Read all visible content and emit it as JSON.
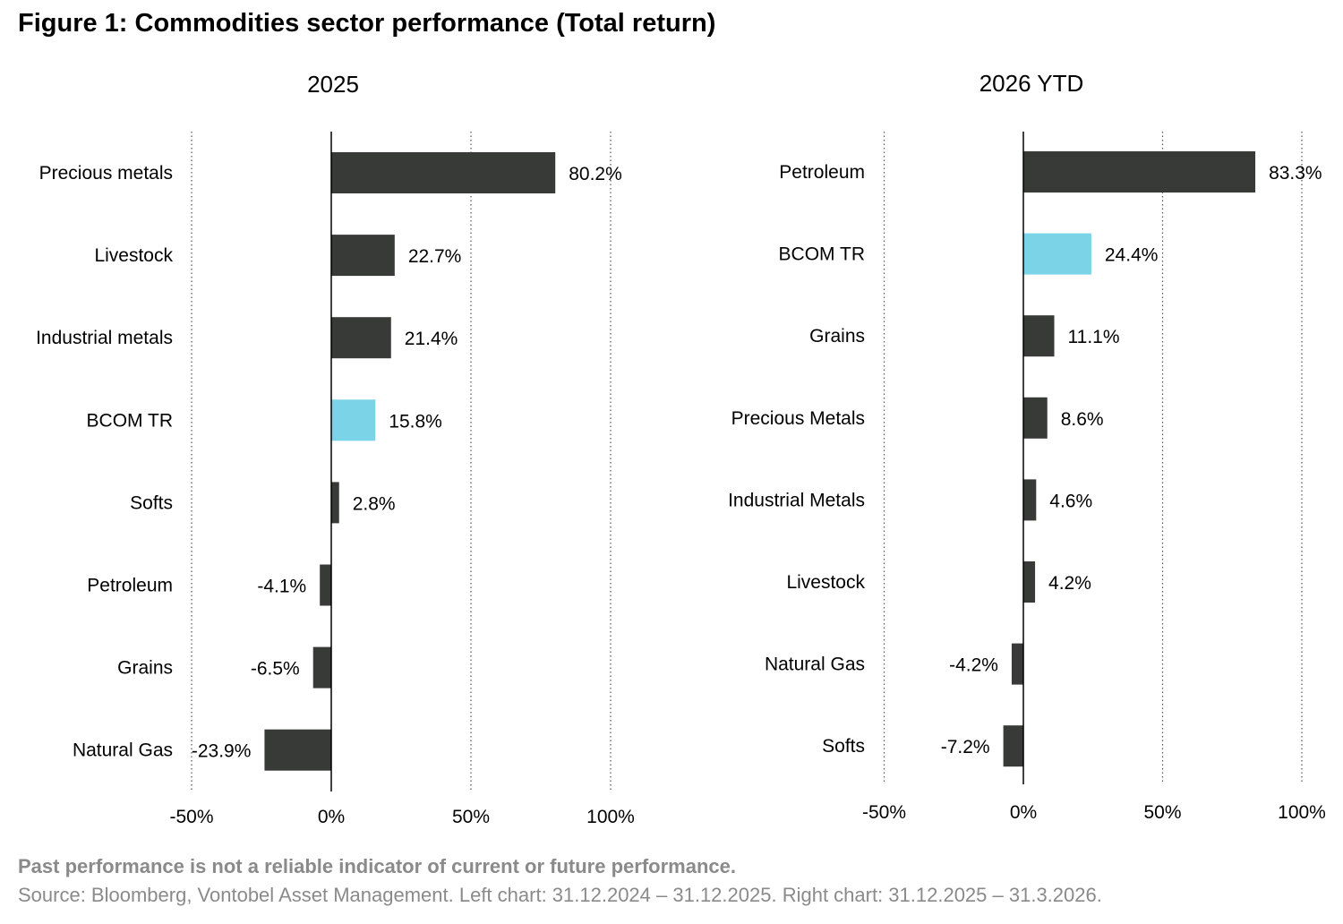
{
  "figure_title": "Figure 1: Commodities sector performance (Total return)",
  "footer": {
    "disclaimer": "Past performance is not a reliable indicator of current or future performance.",
    "source": "Source: Bloomberg, Vontobel Asset Management. Left chart: 31.12.2024 – 31.12.2025. Right chart: 31.12.2025 – 31.3.2026."
  },
  "colors": {
    "bar": "#383a38",
    "highlight": "#7ad3e6",
    "grid": "#555555",
    "axis": "#000000"
  },
  "chart_data": [
    {
      "type": "bar",
      "orientation": "horizontal",
      "title": "2025",
      "categories": [
        "Precious metals",
        "Livestock",
        "Industrial metals",
        "BCOM TR",
        "Softs",
        "Petroleum",
        "Grains",
        "Natural Gas"
      ],
      "values": [
        80.2,
        22.7,
        21.4,
        15.8,
        2.8,
        -4.1,
        -6.5,
        -23.9
      ],
      "value_labels": [
        "80.2%",
        "22.7%",
        "21.4%",
        "15.8%",
        "2.8%",
        "-4.1%",
        "-6.5%",
        "-23.9%"
      ],
      "highlight": "BCOM TR",
      "xlim": [
        -50,
        100
      ],
      "xticks": [
        -50,
        0,
        50,
        100
      ],
      "xtick_labels": [
        "-50%",
        "0%",
        "50%",
        "100%"
      ],
      "grid": "vertical dotted"
    },
    {
      "type": "bar",
      "orientation": "horizontal",
      "title": "2026 YTD",
      "categories": [
        "Petroleum",
        "BCOM TR",
        "Grains",
        "Precious Metals",
        "Industrial Metals",
        "Livestock",
        "Natural Gas",
        "Softs"
      ],
      "values": [
        83.3,
        24.4,
        11.1,
        8.6,
        4.6,
        4.2,
        -4.2,
        -7.2
      ],
      "value_labels": [
        "83.3%",
        "24.4%",
        "11.1%",
        "8.6%",
        "4.6%",
        "4.2%",
        "-4.2%",
        "-7.2%"
      ],
      "highlight": "BCOM TR",
      "xlim": [
        -50,
        100
      ],
      "xticks": [
        -50,
        0,
        50,
        100
      ],
      "xtick_labels": [
        "-50%",
        "0%",
        "50%",
        "100%"
      ],
      "grid": "vertical dotted"
    }
  ]
}
